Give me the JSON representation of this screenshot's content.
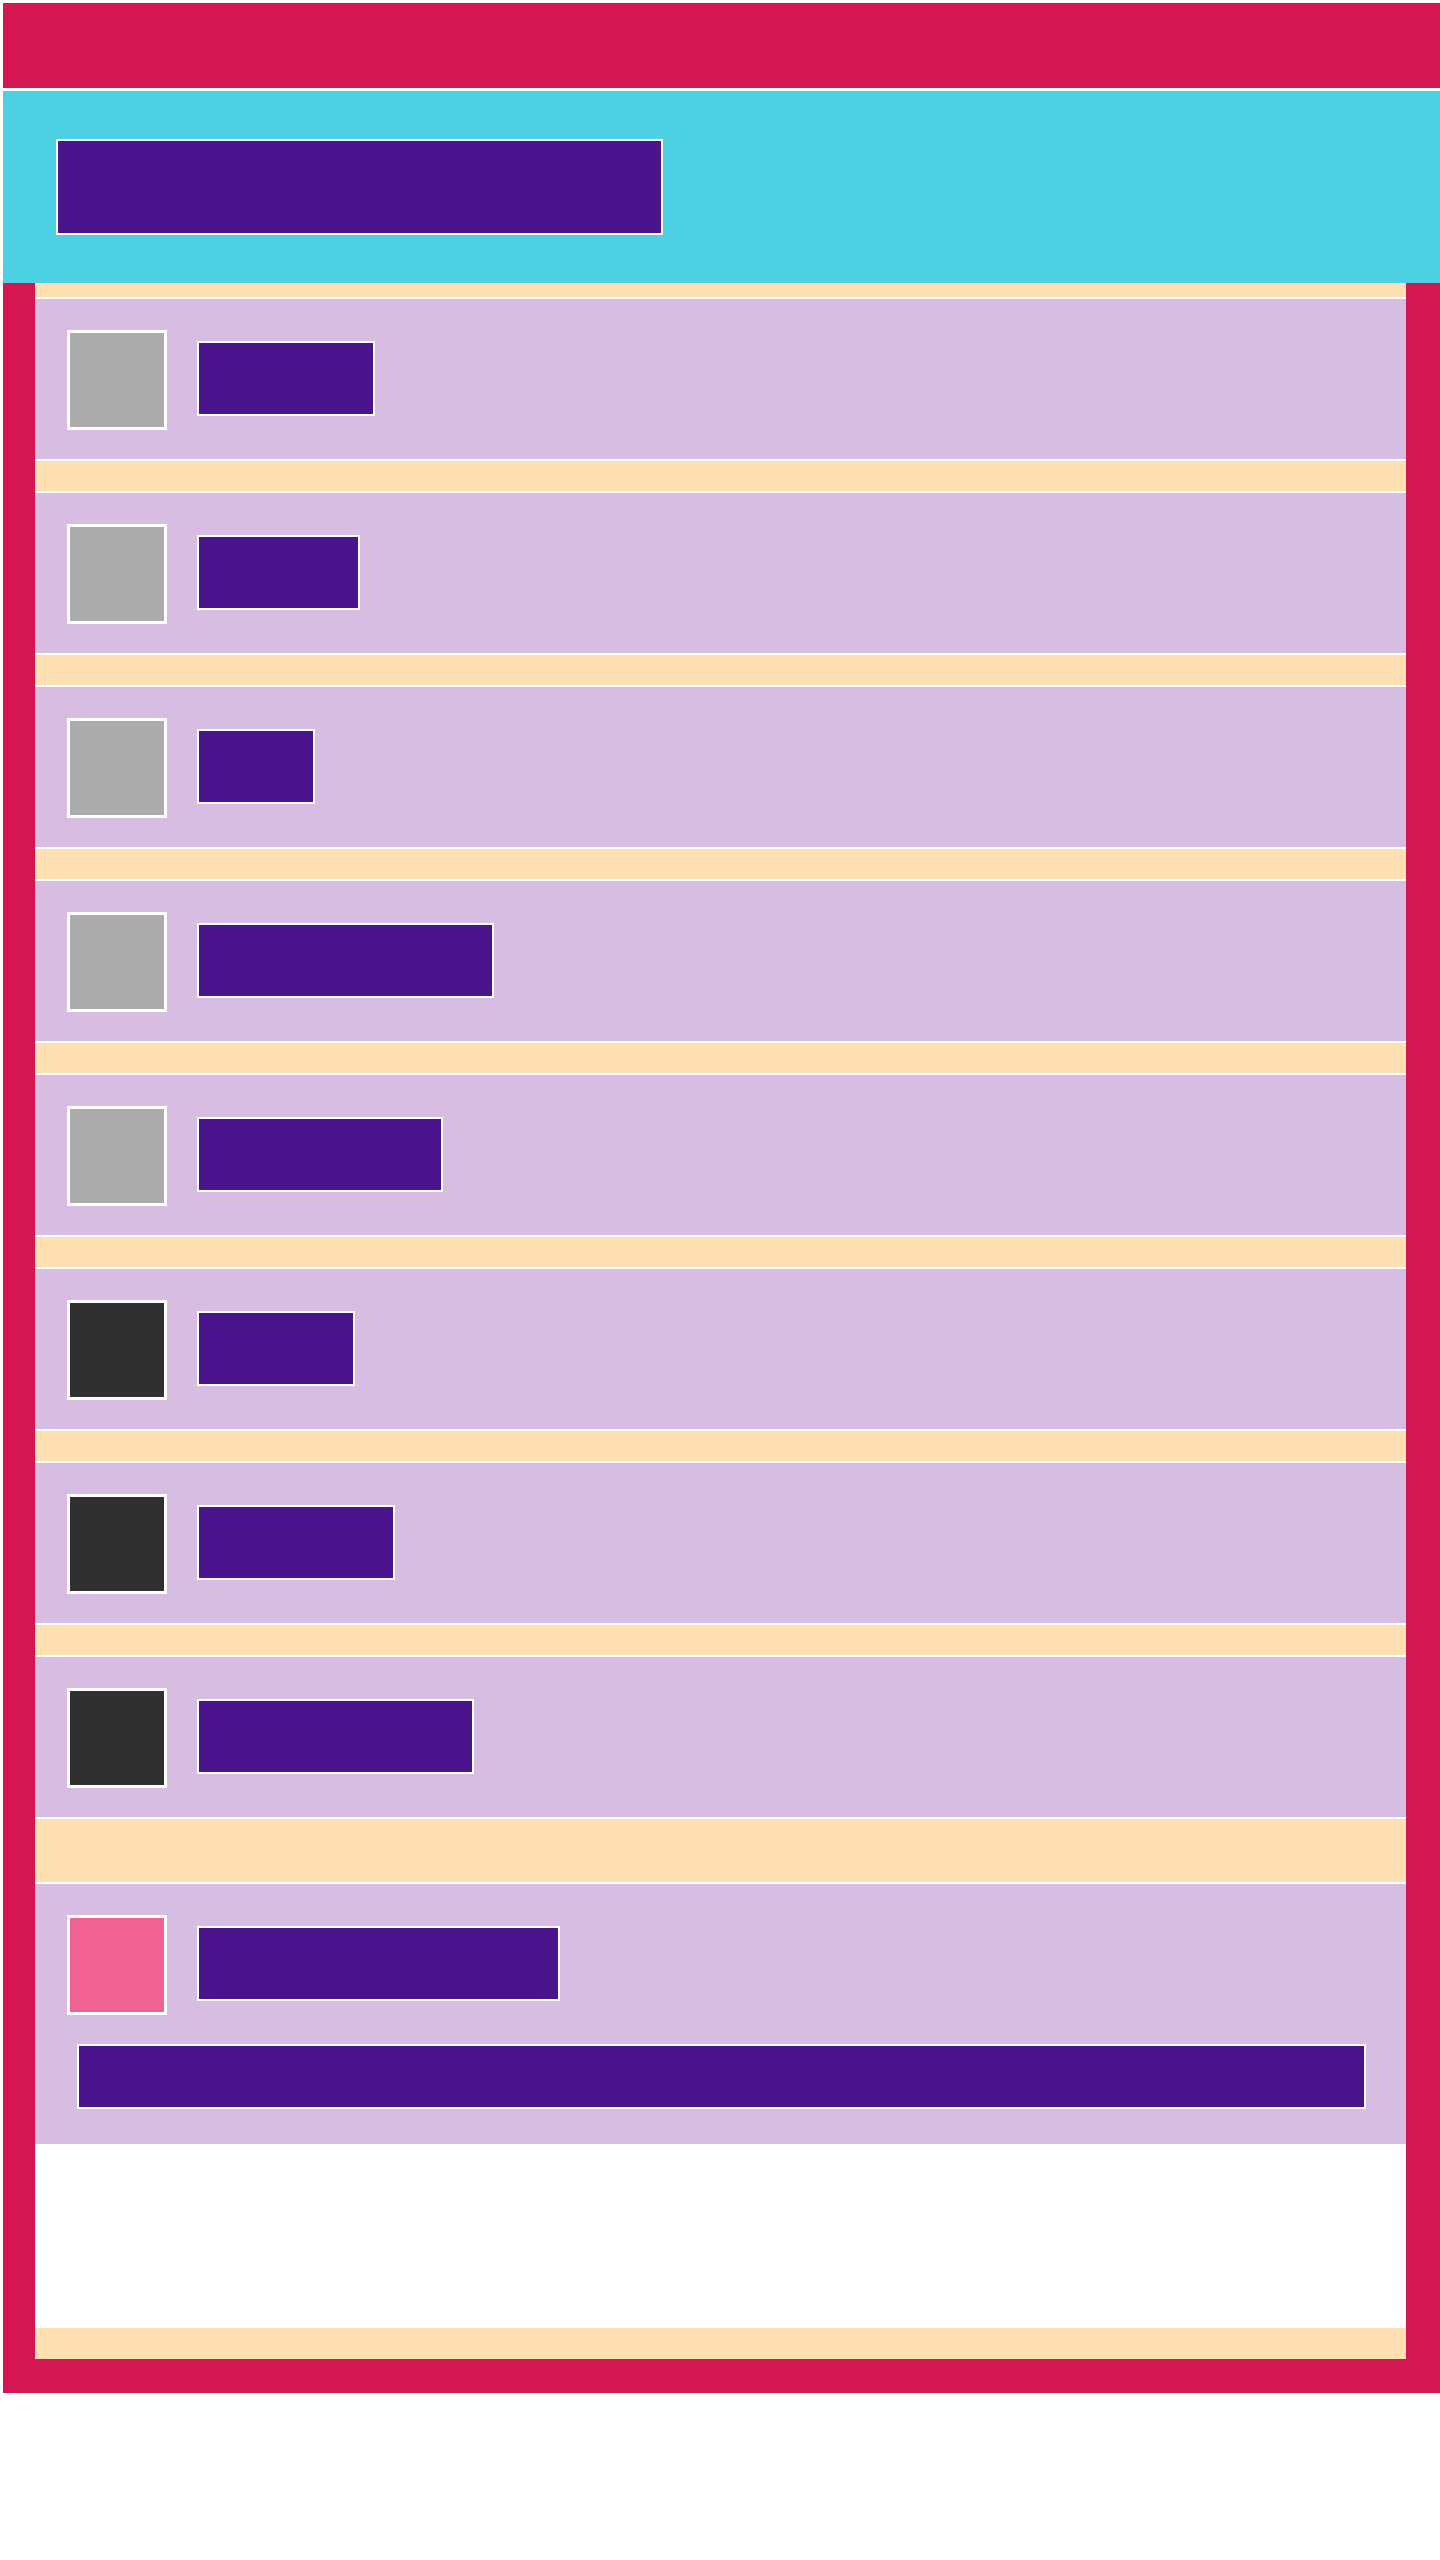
{
  "colors": {
    "toolbar": "#d41652",
    "header": "#4dd0e1",
    "panel": "#ffe0b2",
    "row": "#d7bde2",
    "text_block": "#4a148c",
    "icon_light": "#acacac",
    "icon_dark": "#303030",
    "icon_accent": "#f06292"
  },
  "header": {
    "title": ""
  },
  "list": {
    "items": [
      {
        "label": "",
        "icon": "square-gray-icon"
      },
      {
        "label": "",
        "icon": "square-gray-icon"
      },
      {
        "label": "",
        "icon": "square-gray-icon"
      },
      {
        "label": "",
        "icon": "square-gray-icon"
      },
      {
        "label": "",
        "icon": "square-gray-icon"
      },
      {
        "label": "",
        "icon": "square-dark-icon"
      },
      {
        "label": "",
        "icon": "square-dark-icon"
      },
      {
        "label": "",
        "icon": "square-dark-icon"
      }
    ],
    "expanded_item": {
      "label": "",
      "icon": "square-pink-icon",
      "detail": ""
    }
  }
}
